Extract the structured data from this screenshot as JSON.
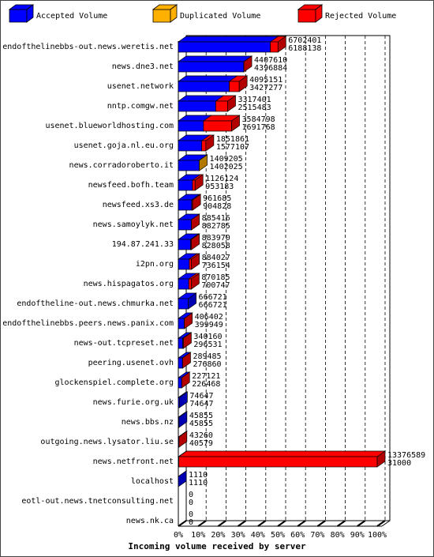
{
  "chart_data": {
    "type": "bar3d",
    "x_label": "Incoming volume received by server",
    "categories": [
      "endofthelinebbs-out.news.weretis.net",
      "news.dne3.net",
      "usenet.network",
      "nntp.comgw.net",
      "usenet.blueworldhosting.com",
      "usenet.goja.nl.eu.org",
      "news.corradoroberto.it",
      "newsfeed.bofh.team",
      "newsfeed.xs3.de",
      "news.samoylyk.net",
      "194.87.241.33",
      "i2pn.org",
      "news.hispagatos.org",
      "endoftheline-out.news.chmurka.net",
      "endofthelinebbs.peers.news.panix.com",
      "news-out.tcpreset.net",
      "peering.usenet.ovh",
      "glockenspiel.complete.org",
      "news.furie.org.uk",
      "news.bbs.nz",
      "outgoing.news.lysator.liu.se",
      "news.netfront.net",
      "localhost",
      "eotl-out.news.tnetconsulting.net",
      "news.nk.ca"
    ],
    "series": [
      {
        "name": "Accepted Volume",
        "color": "#0000ff",
        "values": [
          6188138,
          4396884,
          3427277,
          2515483,
          1691768,
          1577107,
          1402025,
          953183,
          904828,
          882785,
          828058,
          736154,
          700747,
          666721,
          399949,
          296531,
          276860,
          226468,
          74647,
          45855,
          40579,
          31000,
          1110,
          0,
          0
        ]
      },
      {
        "name": "Duplicated Volume",
        "color": "#ffb000"
      },
      {
        "name": "Rejected Volume",
        "color": "#ff0000"
      }
    ],
    "totals": [
      6702401,
      4407610,
      4095151,
      3317401,
      3584798,
      1851861,
      1409205,
      1126124,
      961685,
      885416,
      883970,
      884027,
      870185,
      666721,
      406402,
      340160,
      289485,
      227121,
      74647,
      45855,
      43260,
      13376589,
      1110,
      0,
      0
    ],
    "total_series": [
      2,
      2,
      2,
      2,
      2,
      2,
      1,
      2,
      2,
      2,
      2,
      2,
      2,
      2,
      2,
      2,
      2,
      2,
      2,
      2,
      2,
      2,
      2,
      2,
      2
    ],
    "xlim": [
      0,
      100
    ],
    "xticks": [
      {
        "value": 0,
        "label": "0%"
      },
      {
        "value": 10,
        "label": "10%"
      },
      {
        "value": 20,
        "label": "20%"
      },
      {
        "value": 30,
        "label": "30%"
      },
      {
        "value": 40,
        "label": "40%"
      },
      {
        "value": 50,
        "label": "50%"
      },
      {
        "value": 60,
        "label": "60%"
      },
      {
        "value": 70,
        "label": "70%"
      },
      {
        "value": 80,
        "label": "80%"
      },
      {
        "value": 90,
        "label": "90%"
      },
      {
        "value": 100,
        "label": "100%"
      }
    ],
    "grid": true
  }
}
